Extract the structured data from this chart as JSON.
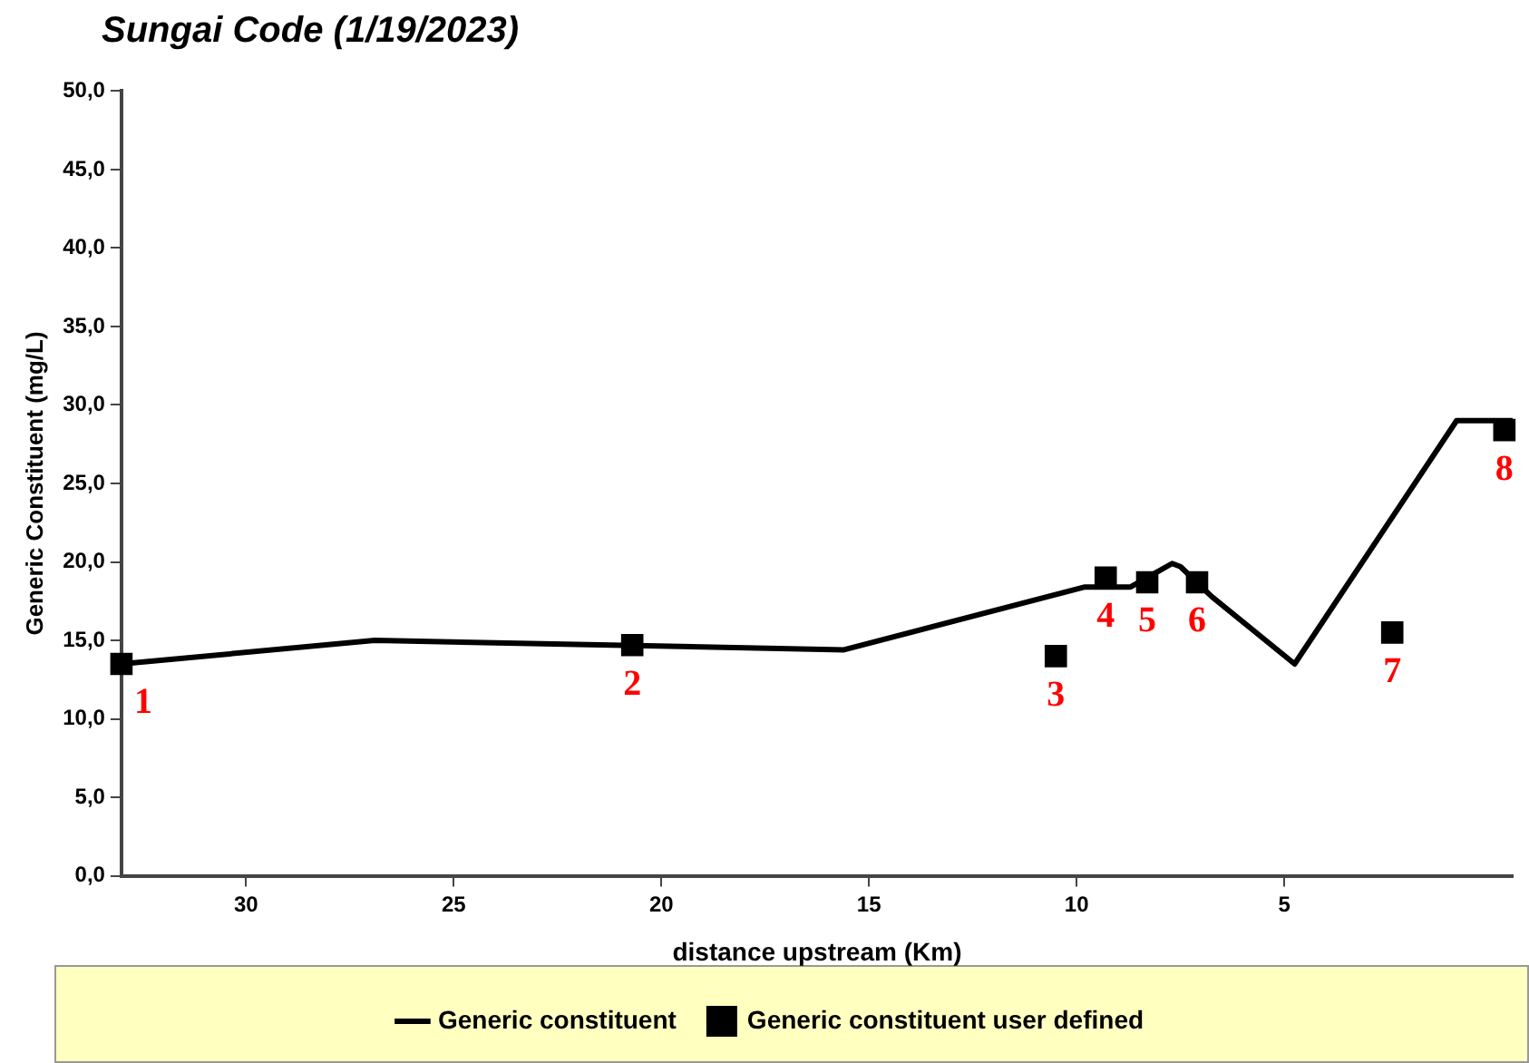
{
  "chart_data": {
    "type": "line",
    "title": "Sungai Code (1/19/2023)",
    "xlabel": "distance upstream (Km)",
    "ylabel": "Generic Constituent (mg/L)",
    "xlim": [
      33,
      -0.5
    ],
    "xticks": [
      30,
      25,
      20,
      15,
      10,
      5
    ],
    "ylim": [
      0,
      50
    ],
    "yticks": [
      {
        "value": 0,
        "label": "0,0"
      },
      {
        "value": 5,
        "label": "5,0"
      },
      {
        "value": 10,
        "label": "10,0"
      },
      {
        "value": 15,
        "label": "15,0"
      },
      {
        "value": 20,
        "label": "20,0"
      },
      {
        "value": 25,
        "label": "25,0"
      },
      {
        "value": 30,
        "label": "30,0"
      },
      {
        "value": 35,
        "label": "35,0"
      },
      {
        "value": 40,
        "label": "40,0"
      },
      {
        "value": 45,
        "label": "45,0"
      },
      {
        "value": 50,
        "label": "50,0"
      }
    ],
    "grid": false,
    "legend": "bottom",
    "series": [
      {
        "name": "Generic constituent",
        "type": "line",
        "color": "#000000",
        "marker": "none",
        "line_style": "solid",
        "x": [
          33,
          26.9,
          15.6,
          9.8,
          8.7,
          7.7,
          7.5,
          6.75,
          4.75,
          0.85,
          -0.5
        ],
        "values": [
          13.5,
          15.0,
          14.4,
          18.4,
          18.4,
          19.9,
          19.7,
          17.8,
          13.5,
          29.0,
          29.0
        ]
      },
      {
        "name": "Generic constituent user defined",
        "type": "scatter",
        "color": "#000000",
        "marker": "square",
        "x": [
          33,
          20.7,
          10.5,
          9.3,
          8.3,
          7.1,
          2.4,
          -0.3
        ],
        "values": [
          13.5,
          14.7,
          14.0,
          19.0,
          18.7,
          18.7,
          15.5,
          28.4
        ]
      }
    ],
    "annotations": [
      {
        "text": "1",
        "x": 33,
        "y": 13.5
      },
      {
        "text": "2",
        "x": 20.7,
        "y": 14.7
      },
      {
        "text": "3",
        "x": 10.5,
        "y": 14.0
      },
      {
        "text": "4",
        "x": 9.3,
        "y": 19.0
      },
      {
        "text": "5",
        "x": 8.3,
        "y": 18.7
      },
      {
        "text": "6",
        "x": 7.1,
        "y": 18.7
      },
      {
        "text": "7",
        "x": 2.4,
        "y": 15.5
      },
      {
        "text": "8",
        "x": -0.3,
        "y": 28.4
      }
    ]
  }
}
